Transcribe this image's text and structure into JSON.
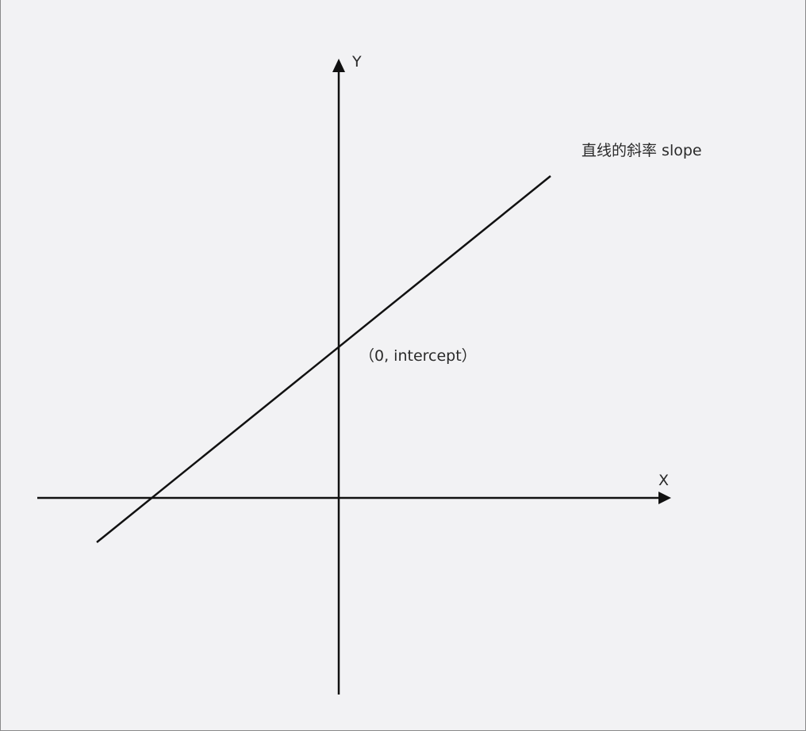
{
  "diagram": {
    "axis_x_label": "X",
    "axis_y_label": "Y",
    "slope_label": "直线的斜率 slope",
    "intercept_label": "（0, intercept）"
  },
  "colors": {
    "background": "#f2f2f4",
    "stroke": "#111111",
    "text": "#2a2a2a"
  }
}
